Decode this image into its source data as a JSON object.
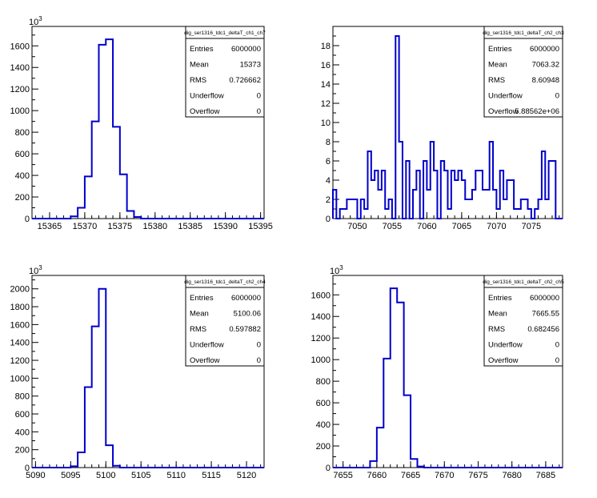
{
  "chart_data": [
    {
      "type": "histogram",
      "stats": {
        "title": "dig_ser1316_tdc1_deltaT_ch1_ch7",
        "rows": [
          {
            "label": "Entries",
            "value": "6000000"
          },
          {
            "label": "Mean",
            "value": "15373"
          },
          {
            "label": "RMS",
            "value": "0.726662"
          },
          {
            "label": "Underflow",
            "value": "0"
          },
          {
            "label": "Overflow",
            "value": "0"
          }
        ]
      },
      "xlim": [
        15362.5,
        15395.5
      ],
      "ylim": [
        0,
        1780
      ],
      "x_ticks": [
        15365,
        15370,
        15375,
        15380,
        15385,
        15390,
        15395
      ],
      "y_ticks": [
        0,
        200,
        400,
        600,
        800,
        1000,
        1200,
        1400,
        1600
      ],
      "y_exponent": "10",
      "y_exponent_power": "3",
      "bin_width": 1,
      "bins": [
        {
          "x": 15370,
          "y": 20
        },
        {
          "x": 15371,
          "y": 100
        },
        {
          "x": 15372,
          "y": 390
        },
        {
          "x": 15373,
          "y": 900
        },
        {
          "x": 15374,
          "y": 1610
        },
        {
          "x": 15375,
          "y": 1660
        },
        {
          "x": 15376,
          "y": 850
        },
        {
          "x": 15377,
          "y": 410
        },
        {
          "x": 15378,
          "y": 70
        },
        {
          "x": 15379,
          "y": 15
        }
      ]
    },
    {
      "type": "histogram",
      "stats": {
        "title": "dig_ser1316_tdc1_deltaT_ch2_ch3",
        "rows": [
          {
            "label": "Entries",
            "value": "6000000"
          },
          {
            "label": "Mean",
            "value": "7063.32"
          },
          {
            "label": "RMS",
            "value": "8.60948"
          },
          {
            "label": "Underflow",
            "value": "0"
          },
          {
            "label": "Overflow",
            "value": "5.88562e+06"
          }
        ]
      },
      "xlim": [
        7046.5,
        7079.5
      ],
      "ylim": [
        0,
        20
      ],
      "x_ticks": [
        7050,
        7055,
        7060,
        7065,
        7070,
        7075
      ],
      "y_ticks": [
        0,
        2,
        4,
        6,
        8,
        10,
        12,
        14,
        16,
        18
      ],
      "bin_width": 0.5,
      "bins_start": 7046.5,
      "counts": [
        3,
        0,
        1,
        1,
        2,
        2,
        2,
        0,
        2,
        1,
        7,
        4,
        5,
        3,
        5,
        1,
        2,
        0,
        19,
        8,
        0,
        6,
        0,
        3,
        5,
        0,
        6,
        3,
        8,
        5,
        0,
        6,
        5,
        1,
        5,
        4,
        5,
        4,
        2,
        2,
        3,
        5,
        5,
        3,
        3,
        8,
        3,
        1,
        5,
        2,
        4,
        4,
        1,
        1,
        2,
        2,
        1,
        0,
        1,
        2,
        7,
        2,
        6,
        6
      ],
      "counts_note": ""
    },
    {
      "type": "histogram",
      "stats": {
        "title": "dig_ser1316_tdc1_deltaT_ch2_ch4",
        "rows": [
          {
            "label": "Entries",
            "value": "6000000"
          },
          {
            "label": "Mean",
            "value": "5100.06"
          },
          {
            "label": "RMS",
            "value": "0.597882"
          },
          {
            "label": "Underflow",
            "value": "0"
          },
          {
            "label": "Overflow",
            "value": "0"
          }
        ]
      },
      "xlim": [
        5089.5,
        5122.5
      ],
      "ylim": [
        0,
        2150
      ],
      "x_ticks": [
        5090,
        5095,
        5100,
        5105,
        5110,
        5115,
        5120
      ],
      "y_ticks": [
        0,
        200,
        400,
        600,
        800,
        1000,
        1200,
        1400,
        1600,
        1800,
        2000
      ],
      "y_exponent": "10",
      "y_exponent_power": "3",
      "bin_width": 1,
      "bins": [
        {
          "x": 5097,
          "y": 15
        },
        {
          "x": 5098,
          "y": 170
        },
        {
          "x": 5099,
          "y": 900
        },
        {
          "x": 5100,
          "y": 1580
        },
        {
          "x": 5101,
          "y": 2000
        },
        {
          "x": 5102,
          "y": 250
        },
        {
          "x": 5103,
          "y": 20
        }
      ]
    },
    {
      "type": "histogram",
      "stats": {
        "title": "dig_ser1316_tdc1_deltaT_ch2_ch5",
        "rows": [
          {
            "label": "Entries",
            "value": "6000000"
          },
          {
            "label": "Mean",
            "value": "7665.55"
          },
          {
            "label": "RMS",
            "value": "0.682456"
          },
          {
            "label": "Underflow",
            "value": "0"
          },
          {
            "label": "Overflow",
            "value": "0"
          }
        ]
      },
      "xlim": [
        7653.5,
        7687.5
      ],
      "ylim": [
        0,
        1780
      ],
      "x_ticks": [
        7655,
        7660,
        7665,
        7670,
        7675,
        7680,
        7685
      ],
      "y_ticks": [
        0,
        200,
        400,
        600,
        800,
        1000,
        1200,
        1400,
        1600
      ],
      "y_exponent": "10",
      "y_exponent_power": "3",
      "bin_width": 1,
      "bins": [
        {
          "x": 7661,
          "y": 60
        },
        {
          "x": 7662,
          "y": 370
        },
        {
          "x": 7663,
          "y": 1010
        },
        {
          "x": 7664,
          "y": 1660
        },
        {
          "x": 7665,
          "y": 1530
        },
        {
          "x": 7666,
          "y": 670
        },
        {
          "x": 7667,
          "y": 80
        },
        {
          "x": 7668,
          "y": 10
        }
      ]
    }
  ]
}
